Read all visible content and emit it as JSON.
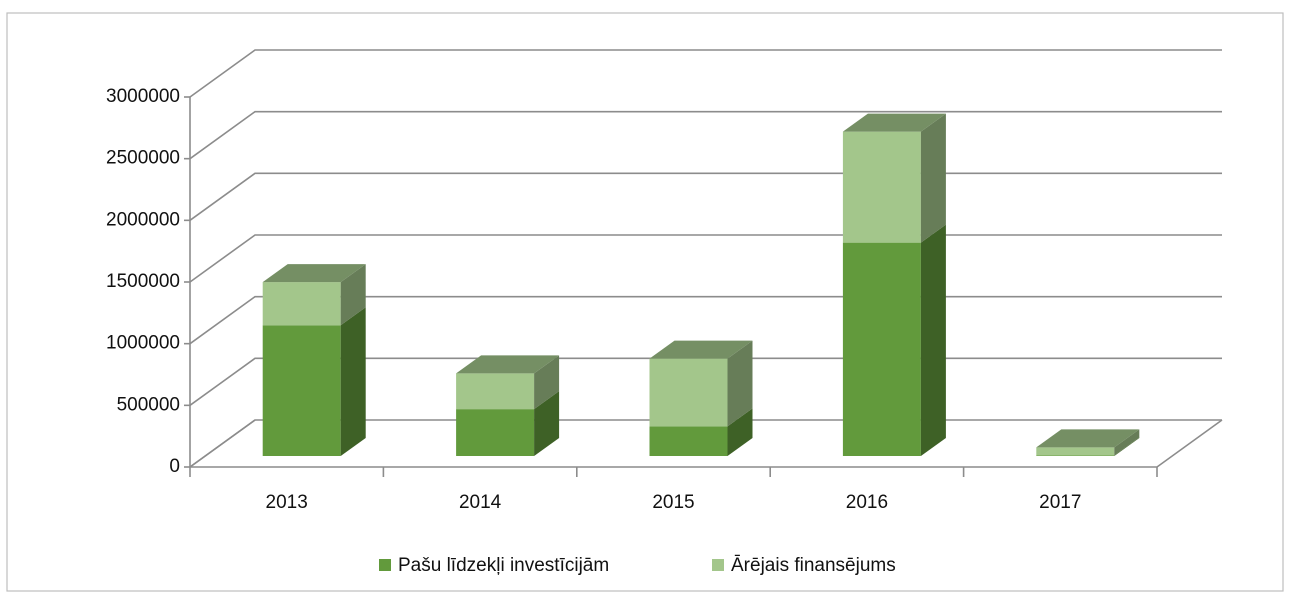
{
  "chart_data": {
    "type": "bar3d_stacked",
    "categories": [
      "2013",
      "2014",
      "2015",
      "2016",
      "2017"
    ],
    "series": [
      {
        "name": "Pašu līdzekļi investīcijām",
        "color": "#629a3c",
        "values": [
          1060000,
          380000,
          240000,
          1730000,
          5000
        ]
      },
      {
        "name": "Ārējais finansējums",
        "color": "#a3c68b",
        "values": [
          350000,
          290000,
          550000,
          900000,
          65000
        ]
      }
    ],
    "ylim": [
      0,
      3000000
    ],
    "yticks": [
      0,
      500000,
      1000000,
      1500000,
      2000000,
      2500000,
      3000000
    ],
    "grid": true,
    "legend": "bottom"
  }
}
